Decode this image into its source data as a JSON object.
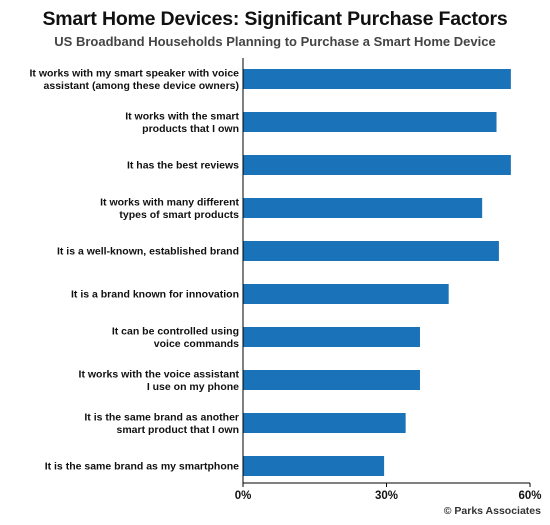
{
  "title": "Smart Home Devices: Significant Purchase Factors",
  "subtitle": "US Broadband Households Planning to Purchase a Smart Home Device",
  "credit": "© Parks Associates",
  "colors": {
    "bar": "#1a72b8",
    "axis": "#000000"
  },
  "chart_data": {
    "type": "bar",
    "orientation": "horizontal",
    "categories": [
      [
        "It works with my smart speaker with voice",
        "assistant (among these device owners)"
      ],
      [
        "It works with the smart",
        "products that I own"
      ],
      [
        "It has the best reviews"
      ],
      [
        "It works with many different",
        "types of smart products"
      ],
      [
        "It is a well-known, established brand"
      ],
      [
        "It is a brand known for innovation"
      ],
      [
        "It can be controlled using",
        "voice commands"
      ],
      [
        "It works with the voice assistant",
        "I use on my phone"
      ],
      [
        "It is the same brand as another",
        "smart product that I own"
      ],
      [
        "It is the same brand as my smartphone"
      ]
    ],
    "values": [
      56,
      53,
      56,
      50,
      53.5,
      43,
      37,
      37,
      34,
      29.5
    ],
    "xlim": [
      0,
      60
    ],
    "xticks": [
      0,
      30,
      60
    ],
    "xtick_labels": [
      "0%",
      "30%",
      "60%"
    ],
    "grid": false,
    "legend": "none"
  }
}
